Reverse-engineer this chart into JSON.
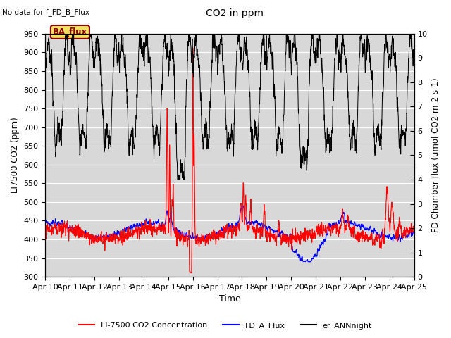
{
  "title": "CO2 in ppm",
  "top_left_text": "No data for f_FD_B_Flux",
  "annotation_text": "BA_flux",
  "ylabel_left": "LI7500 CO2 (ppm)",
  "ylabel_right": "FD Chamber flux (umol CO2 m-2 s-1)",
  "xlabel": "Time",
  "ylim_left": [
    300,
    950
  ],
  "ylim_right": [
    0.0,
    10.0
  ],
  "yticks_left": [
    300,
    350,
    400,
    450,
    500,
    550,
    600,
    650,
    700,
    750,
    800,
    850,
    900,
    950
  ],
  "yticks_right": [
    0.0,
    1.0,
    2.0,
    3.0,
    4.0,
    5.0,
    6.0,
    7.0,
    8.0,
    9.0,
    10.0
  ],
  "x_tick_labels": [
    "Apr 10",
    "Apr 11",
    "Apr 12",
    "Apr 13",
    "Apr 14",
    "Apr 15",
    "Apr 16",
    "Apr 17",
    "Apr 18",
    "Apr 19",
    "Apr 20",
    "Apr 21",
    "Apr 22",
    "Apr 23",
    "Apr 24",
    "Apr 25"
  ],
  "legend_labels": [
    "LI-7500 CO2 Concentration",
    "FD_A_Flux",
    "er_ANNnight"
  ],
  "legend_colors": [
    "red",
    "blue",
    "black"
  ],
  "plot_bg_color": "#d8d8d8",
  "grid_color": "#f0f0f0",
  "n_days": 15,
  "n_points": 2160
}
